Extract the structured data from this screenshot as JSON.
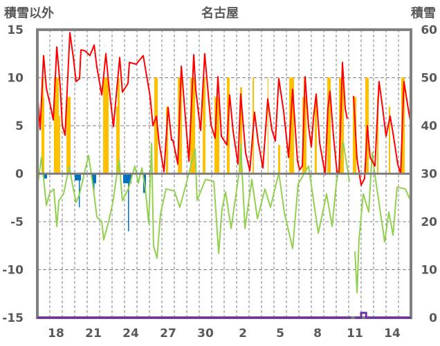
{
  "chart_data": {
    "type": "line",
    "title": "名古屋",
    "ylabel_left": "積雪以外",
    "ylabel_right": "積雪",
    "ylim_left": [
      -15,
      15
    ],
    "ylim_right": [
      0,
      60
    ],
    "yticks_left": [
      "15",
      "10",
      "5",
      "0",
      "-5",
      "-10",
      "-15"
    ],
    "yticks_right": [
      "60",
      "50",
      "40",
      "30",
      "20",
      "10",
      "0"
    ],
    "x_unit": "days from start of Jan 17",
    "xlim": [
      0,
      30
    ],
    "xticks": [
      {
        "day": 1.5,
        "label": "18"
      },
      {
        "day": 4.5,
        "label": "21"
      },
      {
        "day": 7.5,
        "label": "24"
      },
      {
        "day": 10.5,
        "label": "27"
      },
      {
        "day": 13.5,
        "label": "30"
      },
      {
        "day": 16.5,
        "label": "2"
      },
      {
        "day": 19.5,
        "label": "5"
      },
      {
        "day": 22.5,
        "label": "8"
      },
      {
        "day": 25.5,
        "label": "11"
      },
      {
        "day": 28.5,
        "label": "14"
      }
    ],
    "grid": true,
    "colors": {
      "red_line": "#FF0000",
      "green_line": "#92D050",
      "yellow_bars": "#FFC000",
      "blue_bars": "#0070C0",
      "purple_line": "#7030A0",
      "frame": "#808080"
    },
    "red_line": [
      [
        0,
        8.5
      ],
      [
        0.22,
        4.6
      ],
      [
        0.5,
        12.3
      ],
      [
        0.72,
        8.9
      ],
      [
        1.06,
        7
      ],
      [
        1.28,
        5.6
      ],
      [
        1.56,
        13.2
      ],
      [
        1.83,
        9.2
      ],
      [
        2.0,
        5.1
      ],
      [
        2.22,
        4
      ],
      [
        2.61,
        14.7
      ],
      [
        2.89,
        12.1
      ],
      [
        3.11,
        9.6
      ],
      [
        3.39,
        9.9
      ],
      [
        3.5,
        12.9
      ],
      [
        3.83,
        12.8
      ],
      [
        4.22,
        12.3
      ],
      [
        4.56,
        13.4
      ],
      [
        4.78,
        11.1
      ],
      [
        5.17,
        8.2
      ],
      [
        5.5,
        12.5
      ],
      [
        5.72,
        9.4
      ],
      [
        6.11,
        4.9
      ],
      [
        6.61,
        12.1
      ],
      [
        6.83,
        8.5
      ],
      [
        7.28,
        9.4
      ],
      [
        7.39,
        11.6
      ],
      [
        7.94,
        11.4
      ],
      [
        8.5,
        12.3
      ],
      [
        9.06,
        8
      ],
      [
        9.28,
        5
      ],
      [
        9.56,
        6
      ],
      [
        9.78,
        3.2
      ],
      [
        10.17,
        0.2
      ],
      [
        10.5,
        6.9
      ],
      [
        10.78,
        3.5
      ],
      [
        10.89,
        3.5
      ],
      [
        11.28,
        1
      ],
      [
        11.56,
        11.2
      ],
      [
        11.83,
        6.8
      ],
      [
        12.17,
        1.3
      ],
      [
        12.56,
        12.4
      ],
      [
        12.72,
        8.7
      ],
      [
        13.11,
        4.5
      ],
      [
        13.44,
        12.5
      ],
      [
        13.94,
        5.1
      ],
      [
        14.28,
        3.7
      ],
      [
        14.5,
        10.1
      ],
      [
        14.78,
        3.9
      ],
      [
        15.22,
        3
      ],
      [
        15.44,
        8.2
      ],
      [
        15.72,
        4.4
      ],
      [
        16.11,
        1
      ],
      [
        16.33,
        8.3
      ],
      [
        16.72,
        2.2
      ],
      [
        17.06,
        0.3
      ],
      [
        17.44,
        6.4
      ],
      [
        17.72,
        3.4
      ],
      [
        18.11,
        0.6
      ],
      [
        18.5,
        7.8
      ],
      [
        18.83,
        4.6
      ],
      [
        19.11,
        3.4
      ],
      [
        19.39,
        9.9
      ],
      [
        19.78,
        6.5
      ],
      [
        20.17,
        1.7
      ],
      [
        20.5,
        8.8
      ],
      [
        20.89,
        1.3
      ],
      [
        21.06,
        0.4
      ],
      [
        21.28,
        0.8
      ],
      [
        21.5,
        10.1
      ],
      [
        21.78,
        4.9
      ],
      [
        22.0,
        2.8
      ],
      [
        22.17,
        5.8
      ],
      [
        22.39,
        8.3
      ],
      [
        22.67,
        3.2
      ],
      [
        23.11,
        -0.1
      ],
      [
        23.33,
        6.8
      ],
      [
        23.5,
        8.6
      ],
      [
        23.78,
        3.9
      ],
      [
        24.06,
        0.2
      ],
      [
        24.22,
        0
      ],
      [
        24.5,
        11.6
      ],
      [
        24.72,
        6.8
      ],
      [
        24.89,
        5.7
      ],
      null,
      [
        25.39,
        8.1
      ],
      [
        25.67,
        1.5
      ],
      [
        26.0,
        -1.2
      ],
      [
        26.28,
        -0.5
      ],
      [
        26.5,
        5
      ],
      [
        26.72,
        1.7
      ],
      [
        27.11,
        0.8
      ],
      [
        27.44,
        9.6
      ],
      [
        27.72,
        6.9
      ],
      [
        28.0,
        3.9
      ],
      [
        28.33,
        6
      ],
      [
        28.56,
        4.2
      ],
      [
        28.94,
        1
      ],
      [
        29.17,
        0
      ],
      [
        29.44,
        9.6
      ],
      [
        29.78,
        6.8
      ],
      [
        30,
        5.1
      ]
    ],
    "green_line": [
      [
        0,
        -1.4
      ],
      [
        0.33,
        1.7
      ],
      [
        0.61,
        -1.9
      ],
      [
        0.72,
        -3.3
      ],
      [
        1.0,
        -2
      ],
      [
        1.33,
        -1.6
      ],
      [
        1.56,
        -5.5
      ],
      [
        1.72,
        -2.8
      ],
      [
        2.11,
        -2.1
      ],
      [
        2.56,
        0.8
      ],
      [
        2.83,
        -1.2
      ],
      [
        3.11,
        -3
      ],
      [
        3.39,
        -2.1
      ],
      [
        4.11,
        1.9
      ],
      [
        4.5,
        -1.6
      ],
      [
        4.78,
        -4.5
      ],
      [
        5.17,
        -5
      ],
      [
        5.33,
        -6.9
      ],
      [
        5.72,
        -5
      ],
      [
        6.06,
        -3
      ],
      [
        6.56,
        1.5
      ],
      [
        6.83,
        -2.8
      ],
      [
        7.33,
        -1.5
      ],
      [
        7.83,
        0.8
      ],
      [
        8.11,
        -1
      ],
      [
        8.39,
        0.6
      ],
      [
        8.67,
        -1.6
      ],
      [
        8.94,
        -5.2
      ],
      [
        9.17,
        3.2
      ],
      [
        9.33,
        -7.5
      ],
      [
        9.61,
        -8.8
      ],
      [
        9.89,
        -4.2
      ],
      [
        10.33,
        -1.6
      ],
      [
        11.0,
        -1.8
      ],
      [
        11.44,
        -3.5
      ],
      [
        11.94,
        -1.1
      ],
      [
        12.67,
        2.6
      ],
      [
        12.83,
        -2.8
      ],
      [
        13.5,
        -0.6
      ],
      [
        14.17,
        -0.8
      ],
      [
        14.56,
        -8.3
      ],
      [
        14.83,
        -3.7
      ],
      [
        15.11,
        -1.9
      ],
      [
        15.56,
        -5.7
      ],
      [
        16.22,
        0.3
      ],
      [
        16.33,
        3.1
      ],
      [
        16.67,
        -5.7
      ],
      [
        17.22,
        -0.6
      ],
      [
        17.67,
        -4.7
      ],
      [
        18.28,
        -1.6
      ],
      [
        18.72,
        -3.5
      ],
      [
        19.39,
        0.1
      ],
      [
        19.83,
        -4
      ],
      [
        20.5,
        -7.8
      ],
      [
        20.94,
        -1.1
      ],
      [
        21.78,
        0.8
      ],
      [
        22.56,
        -6.2
      ],
      [
        23.22,
        -2.1
      ],
      [
        23.67,
        -5.5
      ],
      [
        24.0,
        -1.1
      ],
      [
        24.56,
        3.3
      ],
      [
        25.06,
        -0.8
      ],
      null,
      [
        25.5,
        -8.1
      ],
      [
        25.67,
        -12.4
      ],
      [
        25.83,
        -6.9
      ],
      [
        26.17,
        -2.1
      ],
      [
        26.61,
        -4
      ],
      [
        26.89,
        2.2
      ],
      [
        27.06,
        0.3
      ],
      [
        27.89,
        -7.1
      ],
      [
        28.22,
        -4
      ],
      [
        28.56,
        -6.4
      ],
      [
        28.89,
        -1.4
      ],
      [
        29.56,
        -1.6
      ],
      [
        29.89,
        -2.6
      ],
      [
        30,
        -1.8
      ]
    ],
    "yellow_bars": [
      [
        0.33,
        0.5,
        10
      ],
      [
        0.5,
        0.56,
        8
      ],
      [
        1.33,
        1.72,
        10
      ],
      [
        1.72,
        1.83,
        6
      ],
      [
        2.33,
        2.44,
        8
      ],
      [
        2.44,
        2.67,
        8
      ],
      [
        5.28,
        5.72,
        10
      ],
      [
        6.33,
        6.44,
        7
      ],
      [
        6.44,
        6.61,
        10
      ],
      [
        9.39,
        9.67,
        10
      ],
      [
        10.33,
        10.5,
        7
      ],
      [
        11.28,
        11.61,
        10
      ],
      [
        12.28,
        12.67,
        10
      ],
      [
        13.28,
        13.5,
        10
      ],
      [
        14.22,
        14.61,
        8
      ],
      [
        15.22,
        15.44,
        10
      ],
      [
        16.28,
        16.44,
        9
      ],
      [
        17.28,
        17.39,
        10
      ],
      [
        18.5,
        18.56,
        10
      ],
      [
        19.33,
        19.5,
        3
      ],
      [
        20.22,
        20.61,
        10
      ],
      [
        21.28,
        21.61,
        8
      ],
      [
        21.39,
        21.5,
        10
      ],
      [
        22.28,
        22.44,
        8
      ],
      [
        23.28,
        23.56,
        10
      ],
      [
        24.22,
        24.61,
        10
      ],
      [
        25.33,
        25.61,
        8
      ],
      [
        26.33,
        26.61,
        10
      ],
      [
        27.28,
        27.39,
        8
      ],
      [
        28.22,
        28.33,
        7
      ],
      [
        29.22,
        29.5,
        10
      ]
    ],
    "blue_bars": [
      [
        0.5,
        0.78,
        -0.5
      ],
      [
        3.0,
        3.5,
        -0.7
      ],
      [
        3.33,
        3.39,
        -3.5
      ],
      [
        4.39,
        4.72,
        -1
      ],
      [
        4.5,
        4.56,
        -2
      ],
      [
        6.89,
        7.56,
        -1
      ],
      [
        7.28,
        7.33,
        -6
      ],
      [
        8.5,
        8.72,
        -2
      ]
    ],
    "purple_line_right_axis": [
      [
        0,
        0
      ],
      [
        25.2,
        0
      ],
      null,
      [
        25.5,
        0
      ],
      [
        26.0,
        0
      ],
      [
        26.0,
        1
      ],
      [
        26.4,
        1
      ],
      [
        26.4,
        0
      ],
      [
        30,
        0
      ]
    ]
  }
}
